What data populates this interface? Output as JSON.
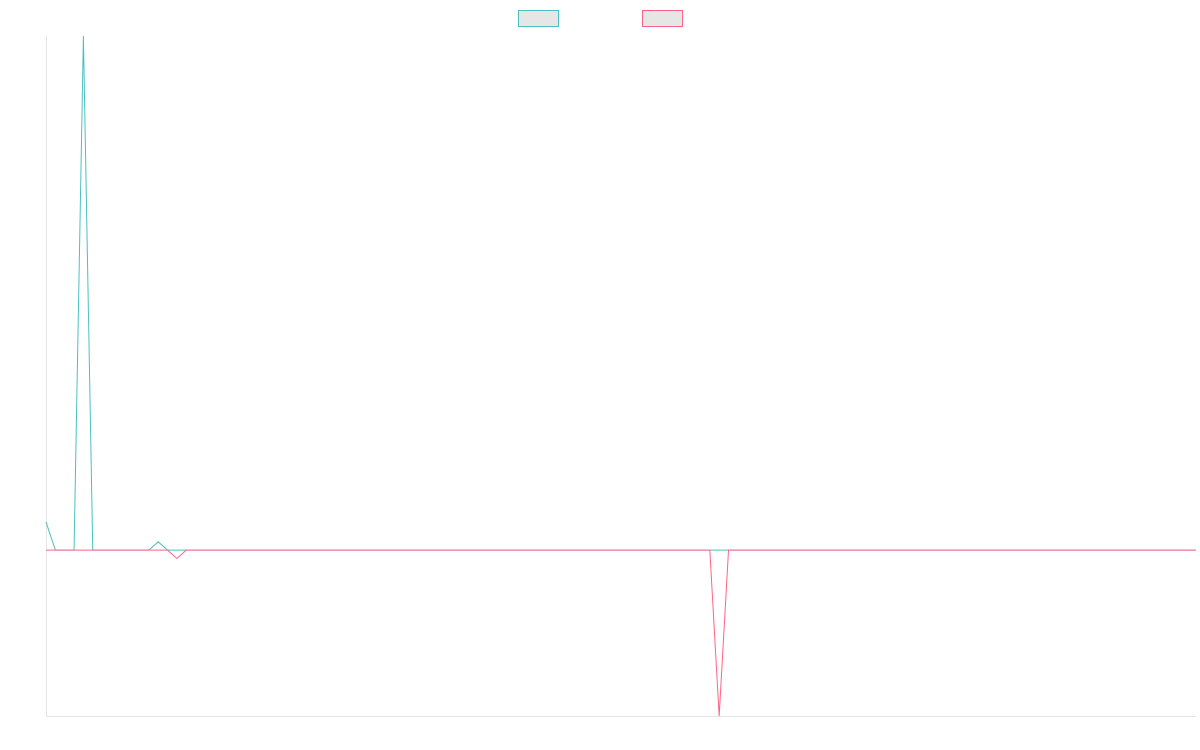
{
  "colors": {
    "background": "#ffffff",
    "axis": "#e5e5e5",
    "legend_fill": "#e6e6e6"
  },
  "chart_data": {
    "type": "line",
    "title": "",
    "xlabel": "",
    "ylabel": "",
    "x_ticks_shown": false,
    "y_ticks_shown": false,
    "grid": false,
    "legend_position": "top-center",
    "x_count": 124,
    "ylim": [
      -10,
      31
    ],
    "series": [
      {
        "name": "",
        "color": "#4bc0c0",
        "points": [
          [
            0,
            1.7
          ],
          [
            1,
            0
          ],
          [
            2,
            0
          ],
          [
            3,
            0
          ],
          [
            4,
            31
          ],
          [
            5,
            0
          ],
          [
            6,
            0
          ],
          [
            7,
            0
          ],
          [
            8,
            0
          ],
          [
            9,
            0
          ],
          [
            10,
            0
          ],
          [
            11,
            0
          ],
          [
            12,
            0.5
          ],
          [
            13,
            0
          ],
          [
            14,
            0
          ],
          [
            15,
            0
          ],
          [
            16,
            0
          ],
          [
            17,
            0
          ],
          [
            18,
            0
          ],
          [
            19,
            0
          ],
          [
            20,
            0
          ],
          [
            21,
            0
          ],
          [
            22,
            0
          ],
          [
            23,
            0
          ],
          [
            24,
            0
          ],
          [
            25,
            0
          ],
          [
            26,
            0
          ],
          [
            27,
            0
          ],
          [
            28,
            0
          ],
          [
            29,
            0
          ],
          [
            30,
            0
          ],
          [
            31,
            0
          ],
          [
            32,
            0
          ],
          [
            33,
            0
          ],
          [
            34,
            0
          ],
          [
            35,
            0
          ],
          [
            36,
            0
          ],
          [
            37,
            0
          ],
          [
            38,
            0
          ],
          [
            39,
            0
          ],
          [
            40,
            0
          ],
          [
            41,
            0
          ],
          [
            42,
            0
          ],
          [
            43,
            0
          ],
          [
            44,
            0
          ],
          [
            45,
            0
          ],
          [
            46,
            0
          ],
          [
            47,
            0
          ],
          [
            48,
            0
          ],
          [
            49,
            0
          ],
          [
            50,
            0
          ],
          [
            51,
            0
          ],
          [
            52,
            0
          ],
          [
            53,
            0
          ],
          [
            54,
            0
          ],
          [
            55,
            0
          ],
          [
            56,
            0
          ],
          [
            57,
            0
          ],
          [
            58,
            0
          ],
          [
            59,
            0
          ],
          [
            60,
            0
          ],
          [
            61,
            0
          ],
          [
            62,
            0
          ],
          [
            63,
            0
          ],
          [
            64,
            0
          ],
          [
            65,
            0
          ],
          [
            66,
            0
          ],
          [
            67,
            0
          ],
          [
            68,
            0
          ],
          [
            69,
            0
          ],
          [
            70,
            0
          ],
          [
            71,
            0
          ],
          [
            72,
            0
          ],
          [
            73,
            0
          ],
          [
            74,
            0
          ],
          [
            75,
            0
          ],
          [
            76,
            0
          ],
          [
            77,
            0
          ],
          [
            78,
            0
          ],
          [
            79,
            0
          ],
          [
            80,
            0
          ],
          [
            81,
            0
          ],
          [
            82,
            0
          ],
          [
            83,
            0
          ],
          [
            84,
            0
          ],
          [
            85,
            0
          ],
          [
            86,
            0
          ],
          [
            87,
            0
          ],
          [
            88,
            0
          ],
          [
            89,
            0
          ],
          [
            90,
            0
          ],
          [
            91,
            0
          ],
          [
            92,
            0
          ],
          [
            93,
            0
          ],
          [
            94,
            0
          ],
          [
            95,
            0
          ],
          [
            96,
            0
          ],
          [
            97,
            0
          ],
          [
            98,
            0
          ],
          [
            99,
            0
          ],
          [
            100,
            0
          ],
          [
            101,
            0
          ],
          [
            102,
            0
          ],
          [
            103,
            0
          ],
          [
            104,
            0
          ],
          [
            105,
            0
          ],
          [
            106,
            0
          ],
          [
            107,
            0
          ],
          [
            108,
            0
          ],
          [
            109,
            0
          ],
          [
            110,
            0
          ],
          [
            111,
            0
          ],
          [
            112,
            0
          ],
          [
            113,
            0
          ],
          [
            114,
            0
          ],
          [
            115,
            0
          ],
          [
            116,
            0
          ],
          [
            117,
            0
          ],
          [
            118,
            0
          ],
          [
            119,
            0
          ],
          [
            120,
            0
          ],
          [
            121,
            0
          ],
          [
            122,
            0
          ],
          [
            123,
            0
          ]
        ]
      },
      {
        "name": "",
        "color": "#ff6384",
        "points": [
          [
            0,
            0
          ],
          [
            1,
            0
          ],
          [
            2,
            0
          ],
          [
            3,
            0
          ],
          [
            4,
            0
          ],
          [
            5,
            0
          ],
          [
            6,
            0
          ],
          [
            7,
            0
          ],
          [
            8,
            0
          ],
          [
            9,
            0
          ],
          [
            10,
            0
          ],
          [
            11,
            0
          ],
          [
            12,
            0
          ],
          [
            13,
            0
          ],
          [
            14,
            -0.5
          ],
          [
            15,
            0
          ],
          [
            16,
            0
          ],
          [
            17,
            0
          ],
          [
            18,
            0
          ],
          [
            19,
            0
          ],
          [
            20,
            0
          ],
          [
            21,
            0
          ],
          [
            22,
            0
          ],
          [
            23,
            0
          ],
          [
            24,
            0
          ],
          [
            25,
            0
          ],
          [
            26,
            0
          ],
          [
            27,
            0
          ],
          [
            28,
            0
          ],
          [
            29,
            0
          ],
          [
            30,
            0
          ],
          [
            31,
            0
          ],
          [
            32,
            0
          ],
          [
            33,
            0
          ],
          [
            34,
            0
          ],
          [
            35,
            0
          ],
          [
            36,
            0
          ],
          [
            37,
            0
          ],
          [
            38,
            0
          ],
          [
            39,
            0
          ],
          [
            40,
            0
          ],
          [
            41,
            0
          ],
          [
            42,
            0
          ],
          [
            43,
            0
          ],
          [
            44,
            0
          ],
          [
            45,
            0
          ],
          [
            46,
            0
          ],
          [
            47,
            0
          ],
          [
            48,
            0
          ],
          [
            49,
            0
          ],
          [
            50,
            0
          ],
          [
            51,
            0
          ],
          [
            52,
            0
          ],
          [
            53,
            0
          ],
          [
            54,
            0
          ],
          [
            55,
            0
          ],
          [
            56,
            0
          ],
          [
            57,
            0
          ],
          [
            58,
            0
          ],
          [
            59,
            0
          ],
          [
            60,
            0
          ],
          [
            61,
            0
          ],
          [
            62,
            0
          ],
          [
            63,
            0
          ],
          [
            64,
            0
          ],
          [
            65,
            0
          ],
          [
            66,
            0
          ],
          [
            67,
            0
          ],
          [
            68,
            0
          ],
          [
            69,
            0
          ],
          [
            70,
            0
          ],
          [
            71,
            0
          ],
          [
            72,
            -10
          ],
          [
            73,
            0
          ],
          [
            74,
            0
          ],
          [
            75,
            0
          ],
          [
            76,
            0
          ],
          [
            77,
            0
          ],
          [
            78,
            0
          ],
          [
            79,
            0
          ],
          [
            80,
            0
          ],
          [
            81,
            0
          ],
          [
            82,
            0
          ],
          [
            83,
            0
          ],
          [
            84,
            0
          ],
          [
            85,
            0
          ],
          [
            86,
            0
          ],
          [
            87,
            0
          ],
          [
            88,
            0
          ],
          [
            89,
            0
          ],
          [
            90,
            0
          ],
          [
            91,
            0
          ],
          [
            92,
            0
          ],
          [
            93,
            0
          ],
          [
            94,
            0
          ],
          [
            95,
            0
          ],
          [
            96,
            0
          ],
          [
            97,
            0
          ],
          [
            98,
            0
          ],
          [
            99,
            0
          ],
          [
            100,
            0
          ],
          [
            101,
            0
          ],
          [
            102,
            0
          ],
          [
            103,
            0
          ],
          [
            104,
            0
          ],
          [
            105,
            0
          ],
          [
            106,
            0
          ],
          [
            107,
            0
          ],
          [
            108,
            0
          ],
          [
            109,
            0
          ],
          [
            110,
            0
          ],
          [
            111,
            0
          ],
          [
            112,
            0
          ],
          [
            113,
            0
          ],
          [
            114,
            0
          ],
          [
            115,
            0
          ],
          [
            116,
            0
          ],
          [
            117,
            0
          ],
          [
            118,
            0
          ],
          [
            119,
            0
          ],
          [
            120,
            0
          ],
          [
            121,
            0
          ],
          [
            122,
            0
          ],
          [
            123,
            0
          ]
        ]
      }
    ]
  }
}
